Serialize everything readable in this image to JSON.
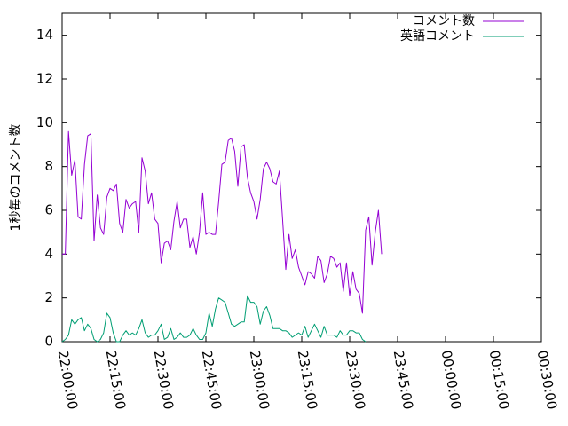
{
  "chart_data": {
    "type": "line",
    "title": "",
    "xlabel": "",
    "ylabel": "1秒毎のコメント数",
    "ylim": [
      0,
      15
    ],
    "xlim": [
      "22:00:00",
      "00:30:00"
    ],
    "grid": false,
    "legend_position": "top-right",
    "yticks": [
      "0",
      "2",
      "4",
      "6",
      "8",
      "10",
      "12",
      "14"
    ],
    "xticks": [
      "22:00:00",
      "22:15:00",
      "22:30:00",
      "22:45:00",
      "23:00:00",
      "23:15:00",
      "23:30:00",
      "23:45:00",
      "00:00:00",
      "00:15:00",
      "00:30:00"
    ],
    "series": [
      {
        "name": "コメント数",
        "color": "#9400d3",
        "points": [
          [
            "22:00:00",
            4.0
          ],
          [
            "22:01:00",
            4.0
          ],
          [
            "22:02:00",
            9.6
          ],
          [
            "22:03:00",
            7.6
          ],
          [
            "22:04:00",
            8.3
          ],
          [
            "22:05:00",
            5.7
          ],
          [
            "22:06:00",
            5.6
          ],
          [
            "22:07:00",
            8.1
          ],
          [
            "22:08:00",
            9.4
          ],
          [
            "22:09:00",
            9.5
          ],
          [
            "22:10:00",
            4.6
          ],
          [
            "22:11:00",
            6.7
          ],
          [
            "22:12:00",
            5.2
          ],
          [
            "22:13:00",
            4.9
          ],
          [
            "22:14:00",
            6.6
          ],
          [
            "22:15:00",
            7.0
          ],
          [
            "22:16:00",
            6.9
          ],
          [
            "22:17:00",
            7.2
          ],
          [
            "22:18:00",
            5.4
          ],
          [
            "22:19:00",
            5.0
          ],
          [
            "22:20:00",
            6.5
          ],
          [
            "22:21:00",
            6.1
          ],
          [
            "22:22:00",
            6.3
          ],
          [
            "22:23:00",
            6.4
          ],
          [
            "22:24:00",
            5.0
          ],
          [
            "22:25:00",
            8.4
          ],
          [
            "22:26:00",
            7.8
          ],
          [
            "22:27:00",
            6.3
          ],
          [
            "22:28:00",
            6.8
          ],
          [
            "22:29:00",
            5.6
          ],
          [
            "22:30:00",
            5.4
          ],
          [
            "22:31:00",
            3.6
          ],
          [
            "22:32:00",
            4.5
          ],
          [
            "22:33:00",
            4.6
          ],
          [
            "22:34:00",
            4.2
          ],
          [
            "22:35:00",
            5.5
          ],
          [
            "22:36:00",
            6.4
          ],
          [
            "22:37:00",
            5.2
          ],
          [
            "22:38:00",
            5.6
          ],
          [
            "22:39:00",
            5.6
          ],
          [
            "22:40:00",
            4.3
          ],
          [
            "22:41:00",
            4.8
          ],
          [
            "22:42:00",
            4.0
          ],
          [
            "22:43:00",
            5.0
          ],
          [
            "22:44:00",
            6.8
          ],
          [
            "22:45:00",
            4.9
          ],
          [
            "22:46:00",
            5.0
          ],
          [
            "22:47:00",
            4.9
          ],
          [
            "22:48:00",
            4.9
          ],
          [
            "22:49:00",
            6.4
          ],
          [
            "22:50:00",
            8.1
          ],
          [
            "22:51:00",
            8.2
          ],
          [
            "22:52:00",
            9.2
          ],
          [
            "22:53:00",
            9.3
          ],
          [
            "22:54:00",
            8.7
          ],
          [
            "22:55:00",
            7.1
          ],
          [
            "22:56:00",
            8.9
          ],
          [
            "22:57:00",
            9.0
          ],
          [
            "22:58:00",
            7.5
          ],
          [
            "22:59:00",
            6.8
          ],
          [
            "23:00:00",
            6.4
          ],
          [
            "23:01:00",
            5.6
          ],
          [
            "23:02:00",
            6.5
          ],
          [
            "23:03:00",
            7.9
          ],
          [
            "23:04:00",
            8.2
          ],
          [
            "23:05:00",
            7.9
          ],
          [
            "23:06:00",
            7.3
          ],
          [
            "23:07:00",
            7.2
          ],
          [
            "23:08:00",
            7.8
          ],
          [
            "23:09:00",
            5.6
          ],
          [
            "23:10:00",
            3.3
          ],
          [
            "23:11:00",
            4.9
          ],
          [
            "23:12:00",
            3.8
          ],
          [
            "23:13:00",
            4.2
          ],
          [
            "23:14:00",
            3.4
          ],
          [
            "23:15:00",
            3.0
          ],
          [
            "23:16:00",
            2.6
          ],
          [
            "23:17:00",
            3.2
          ],
          [
            "23:18:00",
            3.1
          ],
          [
            "23:19:00",
            2.9
          ],
          [
            "23:20:00",
            3.9
          ],
          [
            "23:21:00",
            3.7
          ],
          [
            "23:22:00",
            2.7
          ],
          [
            "23:23:00",
            3.1
          ],
          [
            "23:24:00",
            3.9
          ],
          [
            "23:25:00",
            3.8
          ],
          [
            "23:26:00",
            3.4
          ],
          [
            "23:27:00",
            3.6
          ],
          [
            "23:28:00",
            2.3
          ],
          [
            "23:29:00",
            3.6
          ],
          [
            "23:30:00",
            2.1
          ],
          [
            "23:31:00",
            3.2
          ],
          [
            "23:32:00",
            2.4
          ],
          [
            "23:33:00",
            2.2
          ],
          [
            "23:34:00",
            1.3
          ],
          [
            "23:35:00",
            5.1
          ],
          [
            "23:36:00",
            5.7
          ],
          [
            "23:37:00",
            3.5
          ],
          [
            "23:38:00",
            5.0
          ],
          [
            "23:39:00",
            6.0
          ],
          [
            "23:40:00",
            4.0
          ]
        ]
      },
      {
        "name": "英語コメント",
        "color": "#009e73",
        "points": [
          [
            "22:00:00",
            0.0
          ],
          [
            "22:01:00",
            0.1
          ],
          [
            "22:02:00",
            0.3
          ],
          [
            "22:03:00",
            1.0
          ],
          [
            "22:04:00",
            0.8
          ],
          [
            "22:05:00",
            1.0
          ],
          [
            "22:06:00",
            1.1
          ],
          [
            "22:07:00",
            0.5
          ],
          [
            "22:08:00",
            0.8
          ],
          [
            "22:09:00",
            0.6
          ],
          [
            "22:10:00",
            0.1
          ],
          [
            "22:11:00",
            0.0
          ],
          [
            "22:12:00",
            0.1
          ],
          [
            "22:13:00",
            0.4
          ],
          [
            "22:14:00",
            1.3
          ],
          [
            "22:15:00",
            1.1
          ],
          [
            "22:16:00",
            0.4
          ],
          [
            "22:17:00",
            0.0
          ],
          [
            "22:18:00",
            0.0
          ],
          [
            "22:19:00",
            0.3
          ],
          [
            "22:20:00",
            0.5
          ],
          [
            "22:21:00",
            0.3
          ],
          [
            "22:22:00",
            0.4
          ],
          [
            "22:23:00",
            0.3
          ],
          [
            "22:24:00",
            0.6
          ],
          [
            "22:25:00",
            1.0
          ],
          [
            "22:26:00",
            0.4
          ],
          [
            "22:27:00",
            0.2
          ],
          [
            "22:28:00",
            0.3
          ],
          [
            "22:29:00",
            0.3
          ],
          [
            "22:30:00",
            0.5
          ],
          [
            "22:31:00",
            0.8
          ],
          [
            "22:32:00",
            0.1
          ],
          [
            "22:33:00",
            0.2
          ],
          [
            "22:34:00",
            0.6
          ],
          [
            "22:35:00",
            0.1
          ],
          [
            "22:36:00",
            0.2
          ],
          [
            "22:37:00",
            0.4
          ],
          [
            "22:38:00",
            0.2
          ],
          [
            "22:39:00",
            0.2
          ],
          [
            "22:40:00",
            0.3
          ],
          [
            "22:41:00",
            0.6
          ],
          [
            "22:42:00",
            0.3
          ],
          [
            "22:43:00",
            0.1
          ],
          [
            "22:44:00",
            0.1
          ],
          [
            "22:45:00",
            0.4
          ],
          [
            "22:46:00",
            1.3
          ],
          [
            "22:47:00",
            0.7
          ],
          [
            "22:48:00",
            1.5
          ],
          [
            "22:49:00",
            2.0
          ],
          [
            "22:50:00",
            1.9
          ],
          [
            "22:51:00",
            1.8
          ],
          [
            "22:52:00",
            1.3
          ],
          [
            "22:53:00",
            0.8
          ],
          [
            "22:54:00",
            0.7
          ],
          [
            "22:55:00",
            0.8
          ],
          [
            "22:56:00",
            0.9
          ],
          [
            "22:57:00",
            0.9
          ],
          [
            "22:58:00",
            2.1
          ],
          [
            "22:59:00",
            1.8
          ],
          [
            "23:00:00",
            1.8
          ],
          [
            "23:01:00",
            1.6
          ],
          [
            "23:02:00",
            0.8
          ],
          [
            "23:03:00",
            1.4
          ],
          [
            "23:04:00",
            1.6
          ],
          [
            "23:05:00",
            1.2
          ],
          [
            "23:06:00",
            0.6
          ],
          [
            "23:07:00",
            0.6
          ],
          [
            "23:08:00",
            0.6
          ],
          [
            "23:09:00",
            0.5
          ],
          [
            "23:10:00",
            0.5
          ],
          [
            "23:11:00",
            0.4
          ],
          [
            "23:12:00",
            0.2
          ],
          [
            "23:13:00",
            0.3
          ],
          [
            "23:14:00",
            0.4
          ],
          [
            "23:15:00",
            0.3
          ],
          [
            "23:16:00",
            0.7
          ],
          [
            "23:17:00",
            0.2
          ],
          [
            "23:18:00",
            0.5
          ],
          [
            "23:19:00",
            0.8
          ],
          [
            "23:20:00",
            0.5
          ],
          [
            "23:21:00",
            0.2
          ],
          [
            "23:22:00",
            0.7
          ],
          [
            "23:23:00",
            0.3
          ],
          [
            "23:24:00",
            0.3
          ],
          [
            "23:25:00",
            0.3
          ],
          [
            "23:26:00",
            0.2
          ],
          [
            "23:27:00",
            0.5
          ],
          [
            "23:28:00",
            0.3
          ],
          [
            "23:29:00",
            0.3
          ],
          [
            "23:30:00",
            0.5
          ],
          [
            "23:31:00",
            0.5
          ],
          [
            "23:32:00",
            0.4
          ],
          [
            "23:33:00",
            0.4
          ],
          [
            "23:34:00",
            0.1
          ],
          [
            "23:35:00",
            0.0
          ]
        ]
      }
    ]
  }
}
